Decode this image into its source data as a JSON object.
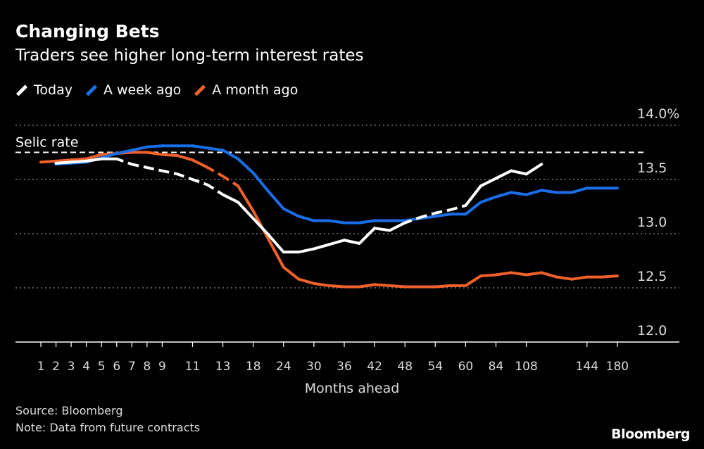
{
  "chart_data": {
    "type": "line",
    "title": "Changing Bets",
    "subtitle": "Traders see higher long-term interest rates",
    "xlabel": "Months ahead",
    "ylabel": "",
    "y_unit": "%",
    "ylim": [
      12.0,
      14.0
    ],
    "yticks": [
      "14.0%",
      "13.5",
      "13.0",
      "12.5",
      "12.0"
    ],
    "ytick_values": [
      14.0,
      13.5,
      13.0,
      12.5,
      12.0
    ],
    "grid": true,
    "legend_placement": "top-left",
    "tick_labels": [
      "1",
      "2",
      "3",
      "4",
      "5",
      "6",
      "7",
      "8",
      "9",
      "",
      "11",
      "",
      "13",
      "",
      "18",
      "",
      "24",
      "",
      "30",
      "",
      "36",
      "",
      "42",
      "",
      "48",
      "",
      "54",
      "",
      "60",
      "",
      "84",
      "",
      "108",
      "",
      "",
      "",
      "144",
      "",
      "180"
    ],
    "reference_line": {
      "label": "Selic rate",
      "value": 13.75,
      "color": "#ffffff"
    },
    "series": [
      {
        "name": "Today",
        "color": "#ffffff",
        "values": [
          null,
          13.65,
          13.66,
          13.67,
          13.69,
          13.69,
          13.64,
          13.61,
          13.58,
          13.55,
          13.5,
          13.45,
          13.36,
          13.29,
          13.14,
          12.99,
          12.83,
          12.83,
          12.86,
          12.9,
          12.94,
          12.91,
          13.05,
          13.03,
          13.1,
          13.15,
          13.19,
          13.22,
          13.26,
          13.44,
          13.51,
          13.58,
          13.55,
          13.64,
          null,
          null,
          null,
          null,
          null
        ],
        "dashed_segments": [
          [
            5,
            12
          ],
          [
            24,
            28
          ]
        ]
      },
      {
        "name": "A week ago",
        "color": "#1a6ee8",
        "values": [
          null,
          13.64,
          13.65,
          13.66,
          13.7,
          13.74,
          13.77,
          13.8,
          13.81,
          13.81,
          13.81,
          13.79,
          13.77,
          13.69,
          13.56,
          13.39,
          13.23,
          13.16,
          13.12,
          13.12,
          13.1,
          13.1,
          13.12,
          13.12,
          13.12,
          13.14,
          13.16,
          13.18,
          13.18,
          13.29,
          13.34,
          13.38,
          13.36,
          13.4,
          13.38,
          13.38,
          13.42,
          13.42,
          13.42
        ],
        "dashed_segments": []
      },
      {
        "name": "A month ago",
        "color": "#f0602a",
        "values": [
          13.66,
          13.67,
          13.68,
          13.69,
          13.73,
          13.74,
          13.75,
          13.75,
          13.73,
          13.72,
          13.68,
          13.61,
          13.53,
          13.44,
          13.21,
          12.95,
          12.69,
          12.58,
          12.54,
          12.52,
          12.51,
          12.51,
          12.53,
          12.52,
          12.51,
          12.51,
          12.51,
          12.52,
          12.52,
          12.61,
          12.62,
          12.64,
          12.62,
          12.64,
          12.6,
          12.58,
          12.6,
          12.6,
          12.61
        ],
        "dashed_segments": [
          [
            11,
            13
          ]
        ]
      }
    ]
  },
  "footer": {
    "source": "Source: Bloomberg",
    "note": "Note: Data from future contracts",
    "logo": "Bloomberg"
  }
}
